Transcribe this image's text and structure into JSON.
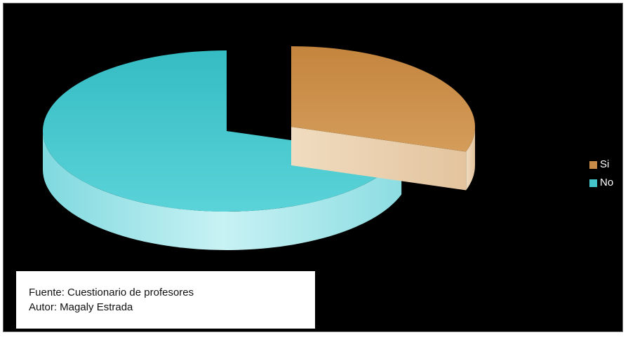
{
  "chart_data": {
    "type": "pie",
    "style": "3d-exploded",
    "categories": [
      "Si",
      "No"
    ],
    "values": [
      30,
      70
    ],
    "legend_position": "right",
    "colors": {
      "Si": {
        "top": "#c98c48",
        "side": "#e8cfac"
      },
      "No": {
        "top": "#44c5cb",
        "side": "#b4ecef"
      }
    }
  },
  "legend": {
    "items": [
      {
        "label": "Si",
        "color": "#c98c48"
      },
      {
        "label": "No",
        "color": "#44c5cb"
      }
    ]
  },
  "source": {
    "line1": "Fuente: Cuestionario de profesores",
    "line2": "Autor: Magaly Estrada"
  }
}
